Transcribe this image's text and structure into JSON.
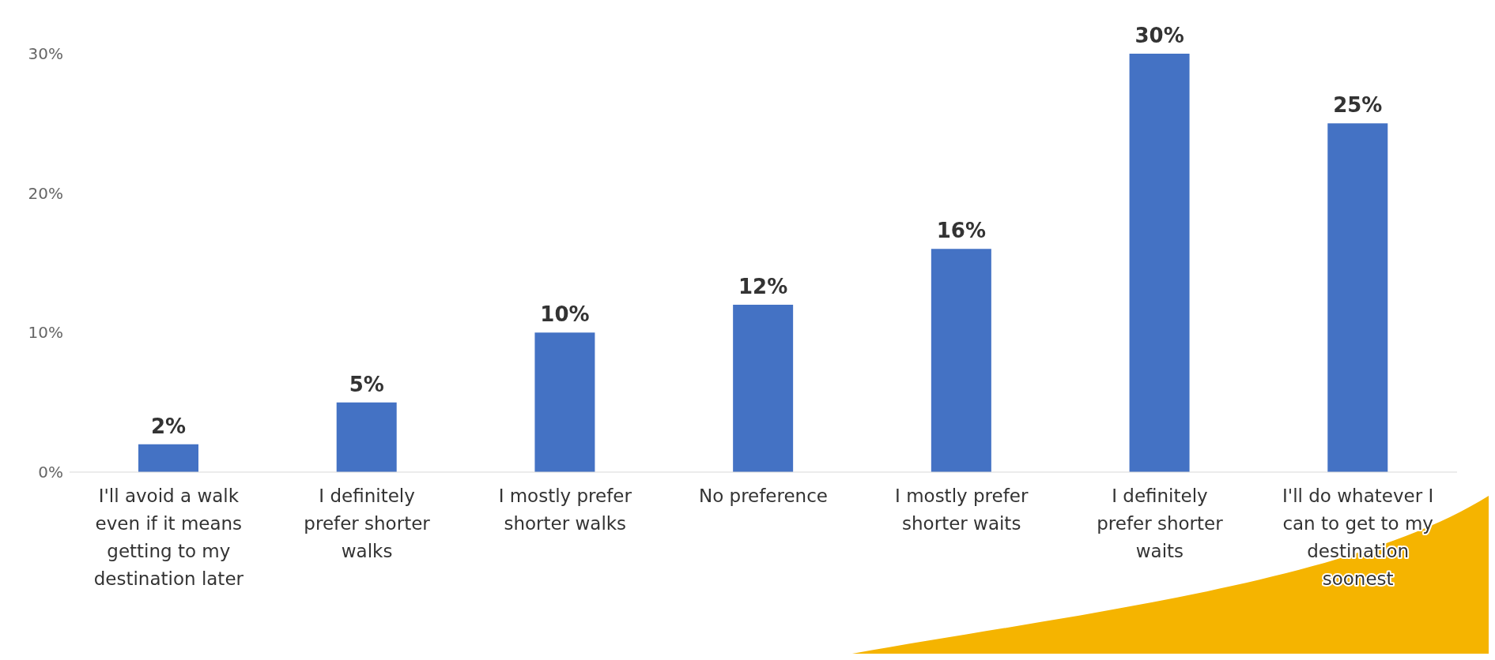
{
  "chart_data": {
    "type": "bar",
    "categories": [
      "I'll avoid a walk even if it means getting to my destination later",
      "I definitely prefer shorter walks",
      "I mostly prefer shorter walks",
      "No preference",
      "I mostly prefer shorter waits",
      "I definitely prefer shorter waits",
      "I'll do whatever I can to get to my destination soonest"
    ],
    "values": [
      2,
      5,
      10,
      12,
      16,
      30,
      25
    ],
    "value_labels": [
      "2%",
      "5%",
      "10%",
      "12%",
      "16%",
      "30%",
      "25%"
    ],
    "color": "#4472c4",
    "ylim": [
      0,
      30
    ],
    "yticks": [
      {
        "value": 0,
        "label": "0%"
      },
      {
        "value": 10,
        "label": "10%"
      },
      {
        "value": 20,
        "label": "20%"
      },
      {
        "value": 30,
        "label": "30%"
      }
    ],
    "grid": false
  }
}
